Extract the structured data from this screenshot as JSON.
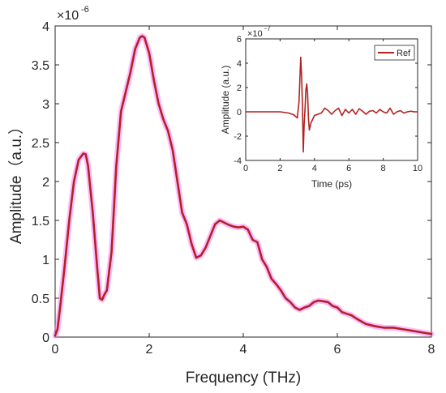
{
  "chart_data": [
    {
      "type": "line",
      "xlabel": "Frequency (THz)",
      "ylabel": "Amplitude（a.u.）",
      "y_multiplier": "×10",
      "y_exponent": "-6",
      "xlim": [
        0,
        8
      ],
      "ylim": [
        0,
        4
      ],
      "xticks": [
        "0",
        "2",
        "4",
        "6",
        "8"
      ],
      "yticks": [
        "0",
        "0.5",
        "1",
        "1.5",
        "2",
        "2.5",
        "3",
        "3.5",
        "4"
      ],
      "line_color": "#b22222",
      "glow_color": "#ff66ff",
      "series": [
        {
          "x": [
            0,
            0.05,
            0.1,
            0.2,
            0.3,
            0.4,
            0.5,
            0.6,
            0.65,
            0.7,
            0.8,
            0.9,
            0.95,
            1.0,
            1.05,
            1.1,
            1.2,
            1.3,
            1.4,
            1.5,
            1.6,
            1.7,
            1.8,
            1.85,
            1.9,
            2.0,
            2.1,
            2.2,
            2.3,
            2.4,
            2.5,
            2.6,
            2.7,
            2.8,
            2.9,
            3.0,
            3.1,
            3.2,
            3.3,
            3.4,
            3.5,
            3.6,
            3.7,
            3.8,
            3.9,
            4.0,
            4.1,
            4.2,
            4.3,
            4.4,
            4.5,
            4.6,
            4.7,
            4.8,
            4.9,
            5.0,
            5.1,
            5.2,
            5.3,
            5.4,
            5.5,
            5.6,
            5.7,
            5.8,
            5.9,
            6.0,
            6.1,
            6.2,
            6.3,
            6.4,
            6.6,
            6.8,
            7.0,
            7.2,
            7.4,
            7.6,
            7.8,
            8.0
          ],
          "y": [
            0.02,
            0.1,
            0.35,
            0.9,
            1.5,
            2.0,
            2.28,
            2.36,
            2.35,
            2.2,
            1.6,
            0.85,
            0.5,
            0.48,
            0.55,
            0.6,
            1.1,
            2.2,
            2.9,
            3.15,
            3.4,
            3.7,
            3.85,
            3.87,
            3.85,
            3.65,
            3.3,
            3.0,
            2.8,
            2.65,
            2.4,
            2.0,
            1.6,
            1.45,
            1.2,
            1.02,
            1.05,
            1.15,
            1.3,
            1.45,
            1.5,
            1.47,
            1.44,
            1.42,
            1.41,
            1.42,
            1.38,
            1.25,
            1.22,
            1.0,
            0.9,
            0.75,
            0.68,
            0.6,
            0.5,
            0.45,
            0.38,
            0.35,
            0.38,
            0.4,
            0.45,
            0.47,
            0.46,
            0.45,
            0.4,
            0.38,
            0.32,
            0.3,
            0.28,
            0.24,
            0.17,
            0.14,
            0.12,
            0.12,
            0.1,
            0.08,
            0.06,
            0.04
          ]
        }
      ]
    },
    {
      "type": "line",
      "xlabel": "Time (ps)",
      "ylabel": "Amplitude (a.u.)",
      "y_multiplier": "×10",
      "y_exponent": "-7",
      "xlim": [
        0,
        10
      ],
      "ylim": [
        -4,
        6
      ],
      "xticks": [
        "0",
        "2",
        "4",
        "6",
        "8",
        "10"
      ],
      "yticks": [
        "-4",
        "-2",
        "0",
        "2",
        "4",
        "6"
      ],
      "legend": "top-right",
      "line_color": "#b22222",
      "series": [
        {
          "name": "Ref",
          "x": [
            0,
            2.0,
            2.5,
            2.8,
            3.0,
            3.1,
            3.2,
            3.25,
            3.3,
            3.35,
            3.4,
            3.45,
            3.5,
            3.55,
            3.6,
            3.65,
            3.7,
            3.75,
            3.8,
            3.9,
            4.0,
            4.2,
            4.4,
            4.6,
            4.8,
            5.0,
            5.2,
            5.4,
            5.6,
            5.8,
            6.0,
            6.2,
            6.4,
            6.6,
            6.8,
            7.0,
            7.2,
            7.4,
            7.6,
            7.8,
            8.0,
            8.2,
            8.4,
            8.6,
            8.8,
            9.0,
            9.2,
            9.4,
            9.6,
            9.8,
            10.0
          ],
          "y": [
            0,
            0,
            -0.1,
            -0.25,
            -0.5,
            0.8,
            4.5,
            3.0,
            0.5,
            -3.3,
            -1.0,
            0.2,
            1.8,
            2.3,
            1.5,
            -0.5,
            -1.5,
            -1.2,
            -0.9,
            -0.6,
            -0.3,
            -0.2,
            -0.1,
            0.3,
            0.1,
            -0.2,
            0.1,
            0.3,
            -0.3,
            0.2,
            -0.1,
            0.2,
            -0.2,
            0.25,
            0.05,
            -0.2,
            0.05,
            0.1,
            -0.1,
            0.2,
            0.0,
            -0.1,
            0.3,
            -0.2,
            0.0,
            0.1,
            -0.1,
            0.0,
            0.05,
            0.0,
            0.0
          ]
        }
      ]
    }
  ]
}
